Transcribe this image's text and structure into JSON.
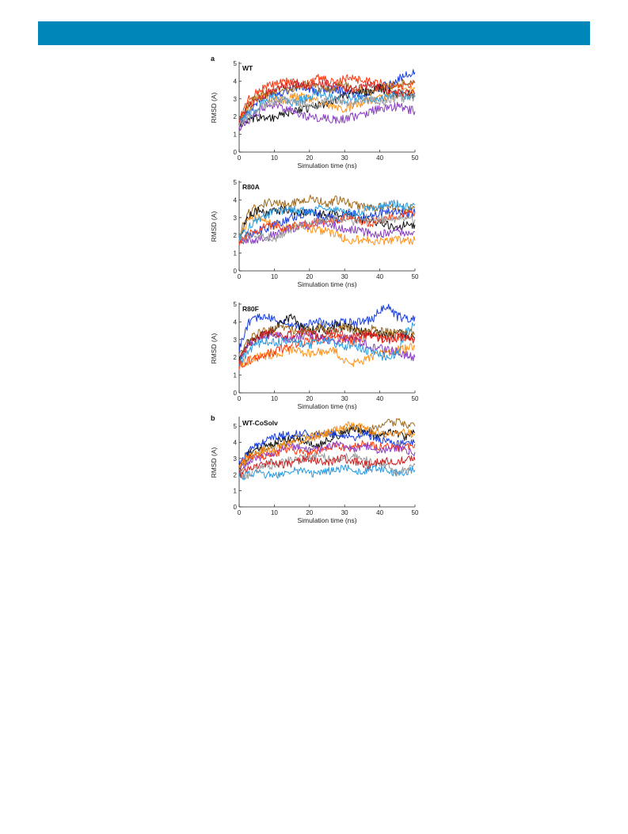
{
  "header": {
    "color": "#0087b8"
  },
  "figure": {
    "panel_a_letter": "a",
    "panel_b_letter": "b"
  },
  "chart_data": [
    {
      "type": "line",
      "title": "WT",
      "xlabel": "Simulation time (ns)",
      "ylabel": "RMSD (A)",
      "xlim": [
        0,
        50
      ],
      "ylim": [
        0,
        5
      ],
      "xticks": [
        "0",
        "10",
        "20",
        "30",
        "40",
        "50"
      ],
      "yticks": [
        "0",
        "1",
        "2",
        "3",
        "4",
        "5"
      ],
      "grid": false,
      "x": [
        0,
        2.5,
        5,
        7.5,
        10,
        12.5,
        15,
        17.5,
        20,
        22.5,
        25,
        27.5,
        30,
        32.5,
        35,
        37.5,
        40,
        42.5,
        45,
        47.5,
        50
      ],
      "series": [
        {
          "color": "#1a3fe0",
          "values": [
            1.6,
            2.3,
            2.8,
            3.1,
            3.3,
            3.4,
            3.6,
            3.7,
            3.5,
            3.4,
            3.6,
            3.5,
            3.4,
            3.3,
            3.2,
            3.4,
            3.6,
            3.8,
            4.1,
            4.3,
            4.5
          ]
        },
        {
          "color": "#ff3a12",
          "values": [
            1.8,
            2.9,
            3.4,
            3.7,
            3.8,
            3.9,
            4.0,
            3.8,
            3.9,
            4.2,
            4.0,
            3.9,
            4.1,
            4.2,
            4.0,
            4.1,
            3.9,
            3.6,
            3.8,
            3.7,
            3.9
          ]
        },
        {
          "color": "#111111",
          "values": [
            1.5,
            1.7,
            1.9,
            2.0,
            1.9,
            2.1,
            2.3,
            2.4,
            2.5,
            2.6,
            2.8,
            3.0,
            3.2,
            3.4,
            3.3,
            3.5,
            3.6,
            3.4,
            3.2,
            3.3,
            3.2
          ]
        },
        {
          "color": "#8a3fc2",
          "values": [
            1.4,
            1.8,
            2.2,
            2.6,
            2.7,
            2.5,
            2.3,
            2.1,
            2.0,
            1.9,
            1.9,
            1.8,
            1.9,
            2.0,
            2.1,
            2.3,
            2.5,
            2.4,
            2.6,
            2.4,
            2.3
          ]
        },
        {
          "color": "#ff9218",
          "values": [
            1.7,
            2.5,
            3.0,
            3.2,
            3.0,
            2.9,
            3.1,
            3.2,
            3.0,
            2.8,
            2.6,
            2.5,
            2.4,
            2.6,
            2.8,
            2.9,
            3.0,
            3.1,
            3.3,
            3.4,
            3.6
          ]
        },
        {
          "color": "#2a9ae0",
          "values": [
            1.6,
            2.1,
            2.5,
            2.9,
            3.2,
            3.0,
            2.8,
            2.9,
            3.1,
            3.3,
            3.2,
            3.0,
            2.9,
            3.1,
            3.0,
            2.8,
            3.0,
            3.2,
            3.4,
            3.2,
            3.1
          ]
        },
        {
          "color": "#a06a1c",
          "values": [
            1.9,
            2.6,
            3.1,
            3.4,
            3.5,
            3.6,
            3.5,
            3.7,
            3.8,
            3.6,
            3.5,
            3.7,
            3.8,
            3.6,
            3.5,
            3.4,
            3.6,
            3.7,
            3.9,
            3.8,
            3.9
          ]
        },
        {
          "color": "#9a9a9a",
          "values": [
            1.5,
            2.0,
            2.4,
            2.7,
            2.8,
            3.0,
            2.9,
            2.7,
            2.6,
            2.7,
            2.9,
            3.0,
            2.8,
            2.7,
            2.9,
            3.0,
            2.8,
            2.9,
            3.1,
            3.0,
            3.1
          ]
        },
        {
          "color": "#cc2222",
          "values": [
            1.8,
            2.6,
            3.0,
            3.3,
            3.5,
            3.7,
            3.8,
            3.9,
            3.7,
            3.8,
            3.9,
            3.7,
            3.6,
            3.5,
            3.7,
            3.8,
            3.6,
            3.5,
            3.3,
            3.4,
            3.3
          ]
        }
      ]
    },
    {
      "type": "line",
      "title": "R80A",
      "xlabel": "Simulation time (ns)",
      "ylabel": "RMSD (A)",
      "xlim": [
        0,
        50
      ],
      "ylim": [
        0,
        5
      ],
      "xticks": [
        "0",
        "10",
        "20",
        "30",
        "40",
        "50"
      ],
      "yticks": [
        "0",
        "1",
        "2",
        "3",
        "4",
        "5"
      ],
      "grid": false,
      "x": [
        0,
        2.5,
        5,
        7.5,
        10,
        12.5,
        15,
        17.5,
        20,
        22.5,
        25,
        27.5,
        30,
        32.5,
        35,
        37.5,
        40,
        42.5,
        45,
        47.5,
        50
      ],
      "series": [
        {
          "color": "#a06a1c",
          "values": [
            2.0,
            3.2,
            3.6,
            3.8,
            3.9,
            3.7,
            3.8,
            4.0,
            4.1,
            3.9,
            3.8,
            4.0,
            3.9,
            3.7,
            3.6,
            3.5,
            3.6,
            3.7,
            3.5,
            3.4,
            3.6
          ]
        },
        {
          "color": "#111111",
          "values": [
            1.8,
            3.0,
            3.4,
            3.2,
            3.3,
            3.5,
            3.3,
            3.2,
            3.4,
            3.3,
            3.1,
            3.2,
            3.3,
            3.0,
            2.9,
            2.8,
            2.7,
            2.6,
            2.5,
            2.6,
            2.6
          ]
        },
        {
          "color": "#ff9218",
          "values": [
            1.9,
            2.8,
            3.0,
            2.8,
            2.6,
            2.4,
            2.5,
            2.6,
            2.4,
            2.3,
            2.2,
            2.0,
            1.8,
            1.7,
            1.8,
            1.7,
            1.6,
            1.7,
            1.8,
            1.7,
            1.7
          ]
        },
        {
          "color": "#1a3fe0",
          "values": [
            1.7,
            2.0,
            2.2,
            2.4,
            2.6,
            2.8,
            3.0,
            3.2,
            3.3,
            3.1,
            3.0,
            2.9,
            3.1,
            3.2,
            3.0,
            3.1,
            3.2,
            3.3,
            3.4,
            3.2,
            3.3
          ]
        },
        {
          "color": "#8a3fc2",
          "values": [
            1.6,
            1.7,
            1.8,
            1.9,
            2.0,
            2.2,
            2.4,
            2.5,
            2.6,
            2.7,
            2.6,
            2.5,
            2.4,
            2.3,
            2.2,
            2.1,
            2.0,
            2.2,
            2.3,
            2.1,
            2.2
          ]
        },
        {
          "color": "#2a9ae0",
          "values": [
            1.8,
            2.4,
            2.9,
            3.1,
            3.3,
            3.4,
            3.5,
            3.4,
            3.3,
            3.5,
            3.6,
            3.4,
            3.3,
            3.2,
            3.4,
            3.5,
            3.6,
            3.7,
            3.8,
            3.6,
            3.7
          ]
        },
        {
          "color": "#ff3a12",
          "values": [
            1.6,
            2.0,
            2.3,
            2.5,
            2.6,
            2.4,
            2.5,
            2.6,
            2.7,
            2.8,
            2.7,
            2.9,
            3.0,
            2.9,
            2.8,
            2.7,
            2.9,
            3.0,
            3.1,
            3.2,
            3.3
          ]
        },
        {
          "color": "#9a9a9a",
          "values": [
            1.7,
            2.0,
            2.1,
            1.9,
            1.8,
            2.1,
            2.3,
            2.5,
            2.6,
            2.8,
            2.9,
            3.0,
            2.9,
            2.8,
            2.9,
            3.0,
            2.9,
            2.8,
            2.9,
            3.0,
            2.9
          ]
        }
      ]
    },
    {
      "type": "line",
      "title": "R80F",
      "xlabel": "Simulation time (ns)",
      "ylabel": "RMSD (A)",
      "xlim": [
        0,
        50
      ],
      "ylim": [
        0,
        5
      ],
      "xticks": [
        "0",
        "10",
        "20",
        "30",
        "40",
        "50"
      ],
      "yticks": [
        "0",
        "1",
        "2",
        "3",
        "4",
        "5"
      ],
      "grid": false,
      "x": [
        0,
        2.5,
        5,
        7.5,
        10,
        12.5,
        15,
        17.5,
        20,
        22.5,
        25,
        27.5,
        30,
        32.5,
        35,
        37.5,
        40,
        42.5,
        45,
        47.5,
        50
      ],
      "series": [
        {
          "color": "#1a3fe0",
          "values": [
            2.4,
            3.9,
            4.2,
            4.3,
            4.1,
            3.9,
            3.8,
            3.7,
            3.9,
            4.0,
            3.8,
            3.9,
            4.0,
            3.9,
            4.0,
            4.1,
            4.6,
            4.8,
            4.3,
            4.2,
            4.3
          ]
        },
        {
          "color": "#111111",
          "values": [
            1.9,
            2.8,
            3.2,
            3.3,
            3.6,
            4.1,
            4.3,
            3.7,
            3.5,
            3.6,
            3.5,
            3.8,
            3.7,
            3.6,
            3.5,
            3.4,
            3.3,
            3.2,
            3.4,
            3.2,
            3.1
          ]
        },
        {
          "color": "#ff9218",
          "values": [
            1.6,
            1.8,
            2.0,
            2.1,
            2.2,
            2.3,
            2.4,
            2.3,
            2.2,
            2.3,
            2.4,
            2.3,
            1.8,
            1.7,
            1.8,
            2.0,
            2.2,
            2.3,
            2.4,
            2.5,
            2.6
          ]
        },
        {
          "color": "#ff3a12",
          "values": [
            1.5,
            1.8,
            2.0,
            2.2,
            2.3,
            2.5,
            2.7,
            2.8,
            2.9,
            3.0,
            3.1,
            3.2,
            3.0,
            2.9,
            3.1,
            3.2,
            3.0,
            3.1,
            3.2,
            3.0,
            3.1
          ]
        },
        {
          "color": "#8a3fc2",
          "values": [
            1.8,
            2.6,
            3.0,
            3.2,
            3.3,
            3.1,
            3.0,
            3.2,
            3.3,
            3.2,
            3.0,
            2.9,
            3.1,
            3.0,
            2.8,
            2.6,
            2.5,
            2.4,
            2.3,
            2.1,
            2.0
          ]
        },
        {
          "color": "#2a9ae0",
          "values": [
            1.7,
            2.3,
            2.7,
            2.9,
            2.8,
            2.9,
            3.0,
            2.8,
            2.7,
            2.9,
            3.0,
            2.8,
            2.6,
            2.7,
            2.5,
            2.3,
            2.1,
            2.0,
            2.2,
            3.4,
            3.9
          ]
        },
        {
          "color": "#a06a1c",
          "values": [
            2.0,
            2.9,
            3.3,
            3.5,
            3.6,
            3.7,
            3.5,
            3.4,
            3.6,
            3.7,
            3.5,
            3.6,
            3.7,
            3.5,
            3.4,
            3.6,
            3.5,
            3.4,
            3.3,
            3.4,
            3.3
          ]
        },
        {
          "color": "#cc2222",
          "values": [
            1.8,
            2.7,
            3.1,
            3.3,
            3.4,
            3.2,
            3.3,
            3.5,
            3.4,
            3.2,
            3.3,
            3.4,
            3.2,
            3.1,
            3.3,
            3.2,
            3.1,
            3.0,
            3.1,
            3.2,
            3.0
          ]
        }
      ]
    },
    {
      "type": "line",
      "title": "WT-CoSolv",
      "xlabel": "Simulation time (ns)",
      "ylabel": "RMSD (A)",
      "xlim": [
        0,
        50
      ],
      "ylim": [
        0,
        5.5
      ],
      "xticks": [
        "0",
        "10",
        "20",
        "30",
        "40",
        "50"
      ],
      "yticks": [
        "0",
        "1",
        "2",
        "3",
        "4",
        "5"
      ],
      "grid": false,
      "x": [
        0,
        2.5,
        5,
        7.5,
        10,
        12.5,
        15,
        17.5,
        20,
        22.5,
        25,
        27.5,
        30,
        32.5,
        35,
        37.5,
        40,
        42.5,
        45,
        47.5,
        50
      ],
      "series": [
        {
          "color": "#a06a1c",
          "values": [
            2.2,
            3.0,
            3.4,
            3.6,
            3.8,
            3.9,
            4.1,
            4.3,
            4.4,
            4.5,
            4.6,
            4.7,
            4.8,
            4.9,
            4.7,
            4.8,
            5.0,
            5.2,
            5.3,
            5.1,
            5.0
          ]
        },
        {
          "color": "#111111",
          "values": [
            2.5,
            3.3,
            3.6,
            3.9,
            4.0,
            4.2,
            4.3,
            4.1,
            4.0,
            3.8,
            4.1,
            4.4,
            4.6,
            4.9,
            4.8,
            4.5,
            4.4,
            4.6,
            4.5,
            4.3,
            4.6
          ]
        },
        {
          "color": "#1a3fe0",
          "values": [
            2.8,
            3.4,
            3.8,
            4.1,
            4.3,
            4.5,
            4.4,
            4.6,
            4.5,
            4.4,
            4.6,
            4.5,
            4.4,
            4.3,
            4.5,
            4.4,
            4.2,
            4.1,
            4.0,
            3.9,
            4.0
          ]
        },
        {
          "color": "#2a9ae0",
          "values": [
            1.8,
            2.0,
            2.1,
            2.0,
            1.9,
            2.1,
            2.2,
            2.3,
            2.1,
            2.0,
            2.2,
            2.3,
            2.4,
            2.3,
            2.2,
            2.3,
            2.4,
            2.2,
            2.1,
            2.2,
            2.3
          ]
        },
        {
          "color": "#9a9a9a",
          "values": [
            1.6,
            2.0,
            2.3,
            2.5,
            2.6,
            2.8,
            2.9,
            3.0,
            3.1,
            3.2,
            3.0,
            2.9,
            3.1,
            3.2,
            3.0,
            2.8,
            2.7,
            2.5,
            2.0,
            2.4,
            2.6
          ]
        },
        {
          "color": "#ff3a12",
          "values": [
            2.6,
            3.0,
            3.2,
            3.1,
            3.3,
            3.5,
            3.6,
            3.4,
            3.3,
            3.5,
            3.7,
            3.8,
            3.6,
            3.7,
            3.9,
            3.8,
            3.7,
            3.8,
            3.6,
            3.7,
            3.9
          ]
        },
        {
          "color": "#8a3fc2",
          "values": [
            2.3,
            2.8,
            3.0,
            3.2,
            3.4,
            3.6,
            3.8,
            3.7,
            3.5,
            3.6,
            3.8,
            3.9,
            3.7,
            3.6,
            3.8,
            3.7,
            3.5,
            3.6,
            3.7,
            3.5,
            3.4
          ]
        },
        {
          "color": "#cc2222",
          "values": [
            2.0,
            2.3,
            2.5,
            2.7,
            2.8,
            2.6,
            2.7,
            2.9,
            3.0,
            2.8,
            2.7,
            2.9,
            3.0,
            2.8,
            2.7,
            2.6,
            2.8,
            2.9,
            2.8,
            3.0,
            2.9
          ]
        },
        {
          "color": "#ff9218",
          "values": [
            2.4,
            3.1,
            3.3,
            3.5,
            3.6,
            3.8,
            4.0,
            4.1,
            4.2,
            4.4,
            4.6,
            4.8,
            5.0,
            5.1,
            4.9,
            4.7,
            4.6,
            4.5,
            4.7,
            4.6,
            4.5
          ]
        }
      ]
    }
  ]
}
